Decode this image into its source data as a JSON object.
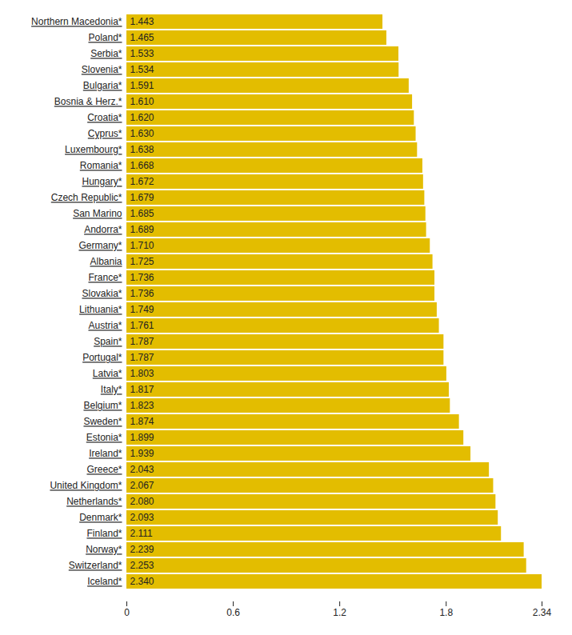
{
  "chart_data": {
    "type": "bar",
    "orientation": "horizontal",
    "categories": [
      "Northern Macedonia*",
      "Poland*",
      "Serbia*",
      "Slovenia*",
      "Bulgaria*",
      "Bosnia & Herz.*",
      "Croatia*",
      "Cyprus*",
      "Luxembourg*",
      "Romania*",
      "Hungary*",
      "Czech Republic*",
      "San Marino",
      "Andorra*",
      "Germany*",
      "Albania",
      "France*",
      "Slovakia*",
      "Lithuania*",
      "Austria*",
      "Spain*",
      "Portugal*",
      "Latvia*",
      "Italy*",
      "Belgium*",
      "Sweden*",
      "Estonia*",
      "Ireland*",
      "Greece*",
      "United Kingdom*",
      "Netherlands*",
      "Denmark*",
      "Finland*",
      "Norway*",
      "Switzerland*",
      "Iceland*"
    ],
    "values": [
      1.443,
      1.465,
      1.533,
      1.534,
      1.591,
      1.61,
      1.62,
      1.63,
      1.638,
      1.668,
      1.672,
      1.679,
      1.685,
      1.689,
      1.71,
      1.725,
      1.736,
      1.736,
      1.749,
      1.761,
      1.787,
      1.787,
      1.803,
      1.817,
      1.823,
      1.874,
      1.899,
      1.939,
      2.043,
      2.067,
      2.08,
      2.093,
      2.111,
      2.239,
      2.253,
      2.34
    ],
    "value_labels": [
      "1.443",
      "1.465",
      "1.533",
      "1.534",
      "1.591",
      "1.610",
      "1.620",
      "1.630",
      "1.638",
      "1.668",
      "1.672",
      "1.679",
      "1.685",
      "1.689",
      "1.710",
      "1.725",
      "1.736",
      "1.736",
      "1.749",
      "1.761",
      "1.787",
      "1.787",
      "1.803",
      "1.817",
      "1.823",
      "1.874",
      "1.899",
      "1.939",
      "2.043",
      "2.067",
      "2.080",
      "2.093",
      "2.111",
      "2.239",
      "2.253",
      "2.340"
    ],
    "data_labels": true,
    "color": "#e3bd00",
    "xlim": [
      0,
      2.34
    ],
    "xticks": [
      0,
      0.6,
      1.2,
      1.8,
      2.34
    ],
    "grid": false
  }
}
